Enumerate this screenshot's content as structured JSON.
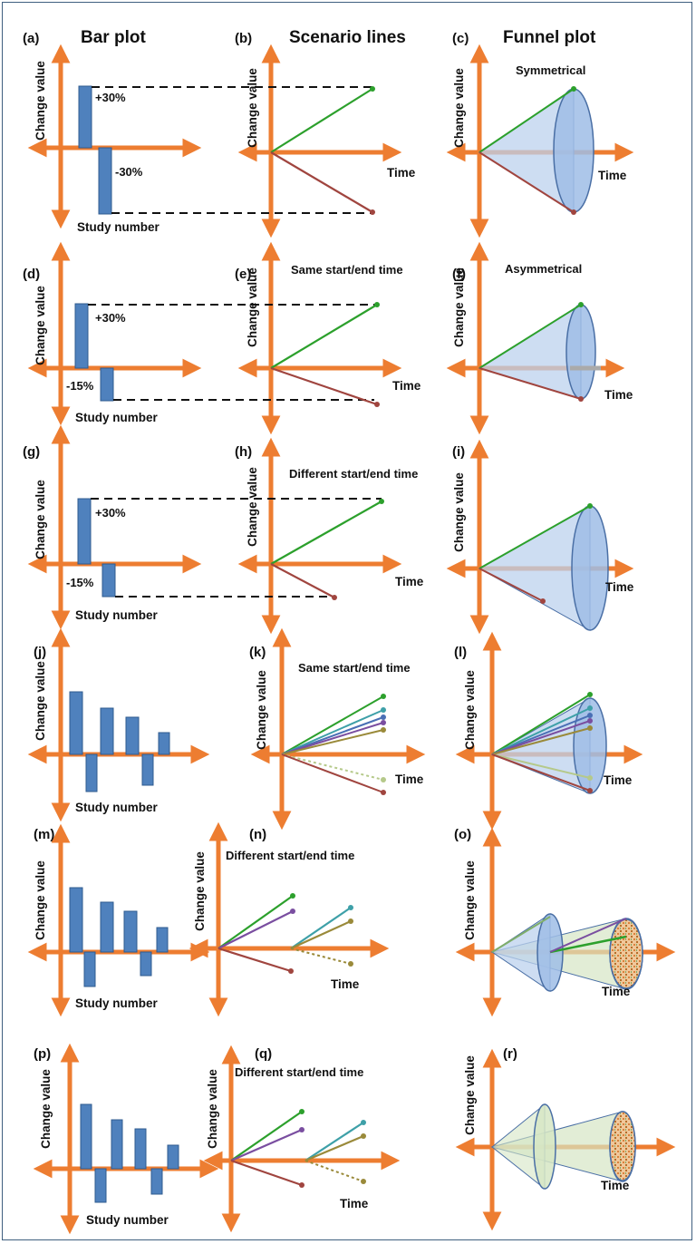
{
  "headers": {
    "bar": "Bar plot",
    "scenario": "Scenario lines",
    "funnel": "Funnel plot"
  },
  "axis_labels": {
    "y": "Change value",
    "x_bar": "Study number",
    "x_time": "Time"
  },
  "panel_letters": [
    "(a)",
    "(b)",
    "(c)",
    "(d)",
    "(e)",
    "(f)",
    "(g)",
    "(h)",
    "(i)",
    "(j)",
    "(k)",
    "(l)",
    "(m)",
    "(n)",
    "(o)",
    "(p)",
    "(q)",
    "(r)"
  ],
  "annotations": {
    "plus30": "+30%",
    "minus30": "-30%",
    "minus15": "-15%",
    "symmetrical": "Symmetrical",
    "asymmetrical": "Asymmetrical",
    "same_time": "Same start/end time",
    "different_time": "Different start/end time"
  },
  "colors": {
    "axis": "#ed7d31",
    "bar": "#4f81bd",
    "bar_edge": "#2f5b8f",
    "up_line": "#2ca02c",
    "down_line": "#a0453f",
    "cone_fill": "#bcd2ee",
    "cone_edge": "#4a6fa5",
    "frame": "#3f5f7f"
  },
  "bar_values_row1": [
    30,
    -30
  ],
  "bar_values_row2": [
    30,
    -15
  ],
  "bar_values_multi": [
    30,
    -16,
    21,
    -17,
    20,
    -12,
    11
  ]
}
